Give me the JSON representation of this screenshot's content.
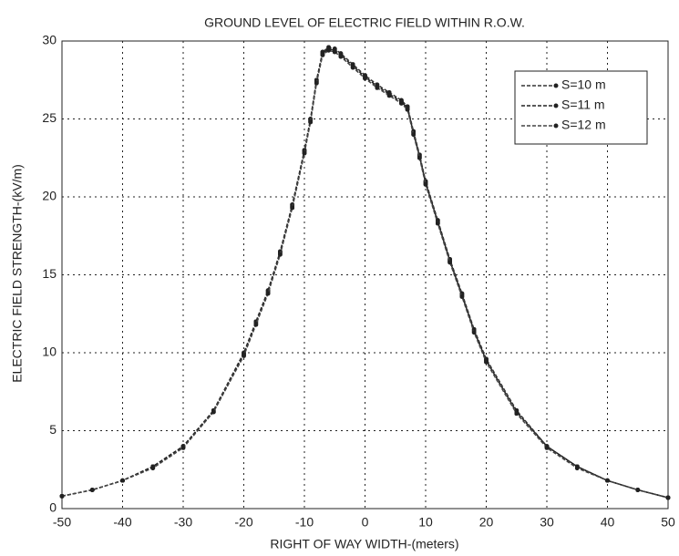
{
  "chart_data": {
    "type": "line",
    "title": "GROUND LEVEL OF ELECTRIC FIELD WITHIN R.O.W.",
    "x_label": "RIGHT OF WAY WIDTH-(meters)",
    "y_label": "ELECTRIC FIELD STRENGTH-(kV/m)",
    "x": [
      -50,
      -45,
      -40,
      -35,
      -30,
      -25,
      -20,
      -18,
      -16,
      -14,
      -12,
      -10,
      -9,
      -8,
      -7,
      -6,
      -5,
      -4,
      -2,
      0,
      2,
      4,
      6,
      7,
      8,
      9,
      10,
      12,
      14,
      16,
      18,
      20,
      25,
      30,
      35,
      40,
      45,
      50
    ],
    "series": [
      {
        "name": "S=10 m",
        "color": "#333333",
        "values": [
          0.8,
          1.2,
          1.8,
          2.7,
          4.0,
          6.3,
          10,
          12,
          14,
          16.5,
          19.5,
          23,
          25,
          27.5,
          29.3,
          29.6,
          29.5,
          29.2,
          28.5,
          27.8,
          27.2,
          26.7,
          26.2,
          25.8,
          24.2,
          22.7,
          21,
          18.5,
          16,
          13.8,
          11.5,
          9.6,
          6.3,
          4.0,
          2.7,
          1.8,
          1.2,
          0.7
        ]
      },
      {
        "name": "S=11 m",
        "color": "#222222",
        "values": [
          0.8,
          1.2,
          1.8,
          2.7,
          4.0,
          6.2,
          9.9,
          11.9,
          13.9,
          16.4,
          19.4,
          22.9,
          24.9,
          27.4,
          29.2,
          29.5,
          29.4,
          29.1,
          28.4,
          27.7,
          27.1,
          26.6,
          26.1,
          25.7,
          24.1,
          22.6,
          20.9,
          18.4,
          15.9,
          13.7,
          11.4,
          9.5,
          6.2,
          4.0,
          2.7,
          1.8,
          1.2,
          0.7
        ]
      },
      {
        "name": "S=12 m",
        "color": "#444444",
        "values": [
          0.8,
          1.2,
          1.8,
          2.6,
          3.9,
          6.2,
          9.8,
          11.8,
          13.8,
          16.3,
          19.3,
          22.8,
          24.8,
          27.3,
          29.1,
          29.4,
          29.3,
          29.0,
          28.3,
          27.6,
          27.0,
          26.5,
          26.0,
          25.6,
          24.0,
          22.5,
          20.8,
          18.3,
          15.8,
          13.6,
          11.3,
          9.4,
          6.1,
          3.9,
          2.6,
          1.8,
          1.2,
          0.7
        ]
      }
    ],
    "xlim": [
      -50,
      50
    ],
    "xticks": [
      -50,
      -40,
      -30,
      -20,
      -10,
      0,
      10,
      20,
      30,
      40,
      50
    ],
    "ylim": [
      0,
      30
    ],
    "yticks": [
      0,
      5,
      10,
      15,
      20,
      25,
      30
    ],
    "grid": true,
    "legend": "upper right"
  }
}
